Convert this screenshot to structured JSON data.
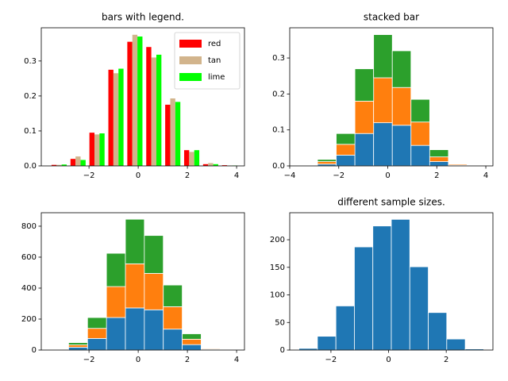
{
  "chart_data": [
    {
      "type": "histogram",
      "title": "bars with legend.",
      "stacked": false,
      "legend": "upper right",
      "bins": [
        -3.6,
        -2.83,
        -2.06,
        -1.29,
        -0.52,
        0.25,
        1.02,
        1.79,
        2.56,
        3.33,
        4.1
      ],
      "series": [
        {
          "name": "red",
          "color": "#ff0000",
          "values": [
            0.003,
            0.02,
            0.095,
            0.275,
            0.355,
            0.34,
            0.175,
            0.045,
            0.005,
            0.002
          ]
        },
        {
          "name": "tan",
          "color": "#d2b48c",
          "values": [
            0.003,
            0.027,
            0.09,
            0.265,
            0.375,
            0.31,
            0.193,
            0.04,
            0.008,
            0.001
          ]
        },
        {
          "name": "lime",
          "color": "#00ff00",
          "values": [
            0.004,
            0.017,
            0.093,
            0.278,
            0.37,
            0.318,
            0.183,
            0.045,
            0.005,
            0.001
          ]
        }
      ],
      "xlim": [
        -3.94,
        4.32
      ],
      "xticks": [
        {
          "value": -2,
          "label": "−2"
        },
        0,
        2,
        4
      ],
      "ylim": [
        0,
        0.395
      ],
      "yticks": [
        {
          "value": 0,
          "label": "0.0"
        },
        0.1,
        0.2,
        0.3
      ]
    },
    {
      "type": "histogram",
      "title": "stacked bar",
      "stacked": true,
      "bins": [
        -3.63,
        -2.867,
        -2.104,
        -1.341,
        -0.578,
        0.185,
        0.948,
        1.711,
        2.474,
        3.237,
        4.0
      ],
      "series": [
        {
          "color": "#1f77b4",
          "values": [
            0.001,
            0.005,
            0.03,
            0.09,
            0.12,
            0.113,
            0.057,
            0.012,
            0.002,
            0.0005
          ]
        },
        {
          "color": "#ff7f0e",
          "values": [
            0.0005,
            0.007,
            0.03,
            0.09,
            0.125,
            0.105,
            0.065,
            0.013,
            0.003,
            0.0005
          ]
        },
        {
          "color": "#2ca02c",
          "values": [
            0.0005,
            0.006,
            0.03,
            0.09,
            0.12,
            0.102,
            0.063,
            0.02,
            0.001,
            0.001
          ]
        }
      ],
      "xlim": [
        -4.0,
        4.29
      ],
      "xticks": [
        {
          "value": -4,
          "label": "−4"
        },
        {
          "value": -2,
          "label": "−2"
        },
        0,
        2,
        4
      ],
      "ylim": [
        0,
        0.384
      ],
      "yticks": [
        {
          "value": 0,
          "label": "0.0"
        },
        0.1,
        0.2,
        0.3
      ]
    },
    {
      "type": "histogram",
      "stacked": true,
      "bins": [
        -3.6,
        -2.83,
        -2.06,
        -1.29,
        -0.52,
        0.25,
        1.02,
        1.79,
        2.56,
        3.33,
        4.1
      ],
      "series": [
        {
          "color": "#1f77b4",
          "values": [
            2,
            18,
            75,
            210,
            272,
            260,
            135,
            35,
            5,
            1
          ]
        },
        {
          "color": "#ff7f0e",
          "values": [
            1,
            15,
            65,
            200,
            285,
            235,
            145,
            35,
            5,
            1
          ]
        },
        {
          "color": "#2ca02c",
          "values": [
            2,
            15,
            70,
            215,
            288,
            245,
            140,
            35,
            2,
            1
          ]
        }
      ],
      "xlim": [
        -3.94,
        4.32
      ],
      "xticks": [
        {
          "value": -2,
          "label": "−2"
        },
        0,
        2,
        4
      ],
      "ylim": [
        0,
        887
      ],
      "yticks": [
        0,
        200,
        400,
        600,
        800
      ]
    },
    {
      "type": "histogram",
      "title": "different sample sizes.",
      "stacked": false,
      "bins": [
        -3.11,
        -2.469,
        -1.828,
        -1.187,
        -0.546,
        0.095,
        0.736,
        1.377,
        2.018,
        2.659,
        3.3
      ],
      "series": [
        {
          "color": "#1f77b4",
          "values": [
            3,
            25,
            80,
            187,
            225,
            237,
            151,
            68,
            20,
            2
          ]
        }
      ],
      "xlim": [
        -3.43,
        3.62
      ],
      "xticks": [
        {
          "value": -2,
          "label": "−2"
        },
        0,
        2
      ],
      "ylim": [
        0,
        249
      ],
      "yticks": [
        0,
        50,
        100,
        150,
        200
      ]
    }
  ]
}
